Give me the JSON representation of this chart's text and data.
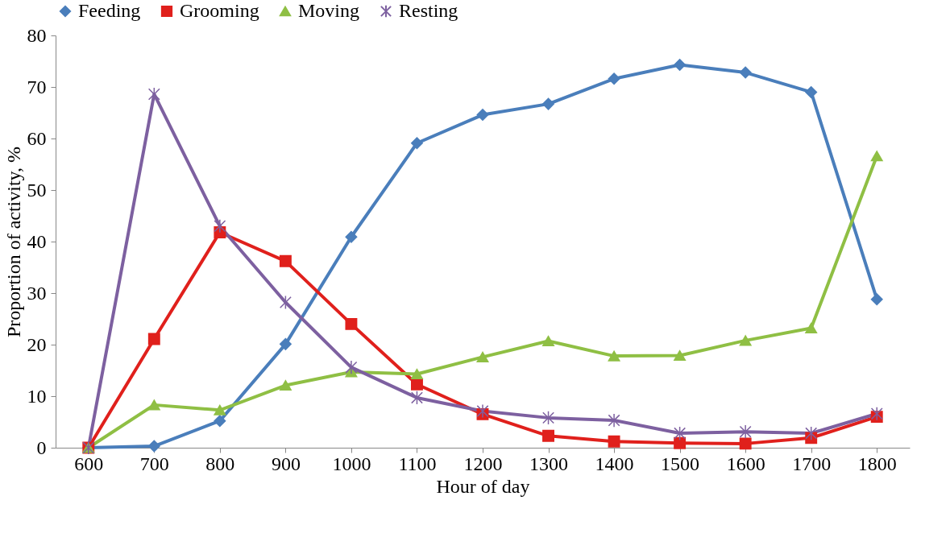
{
  "chart_data": {
    "type": "line",
    "xlabel": "Hour of day",
    "ylabel": "Proportion of activity, %",
    "categories": [
      "600",
      "700",
      "800",
      "900",
      "1000",
      "1100",
      "1200",
      "1300",
      "1400",
      "1500",
      "1600",
      "1700",
      "1800"
    ],
    "series": [
      {
        "name": "Feeding",
        "color": "#4a7ebb",
        "marker": "diamond",
        "values": [
          0,
          0.3,
          5.2,
          20.1,
          40.9,
          59.1,
          64.6,
          66.7,
          71.6,
          74.3,
          72.8,
          69.0,
          28.8
        ]
      },
      {
        "name": "Grooming",
        "color": "#e0201c",
        "marker": "square",
        "values": [
          0,
          21.1,
          41.8,
          36.2,
          24.0,
          12.3,
          6.5,
          2.3,
          1.2,
          0.9,
          0.8,
          1.9,
          6.0
        ]
      },
      {
        "name": "Moving",
        "color": "#8fbf44",
        "marker": "triangle",
        "values": [
          0,
          8.3,
          7.3,
          12.1,
          14.7,
          14.3,
          17.6,
          20.7,
          17.8,
          17.9,
          20.8,
          23.2,
          56.6
        ]
      },
      {
        "name": "Resting",
        "color": "#7d60a0",
        "marker": "cross",
        "values": [
          0,
          68.6,
          43.0,
          28.2,
          15.6,
          9.7,
          7.1,
          5.8,
          5.3,
          2.8,
          3.1,
          2.8,
          6.6
        ]
      }
    ],
    "ylim": [
      0,
      80
    ],
    "yticks": [
      0,
      10,
      20,
      30,
      40,
      50,
      60,
      70,
      80
    ],
    "grid": false,
    "legend": "top",
    "line_style": "solid"
  }
}
